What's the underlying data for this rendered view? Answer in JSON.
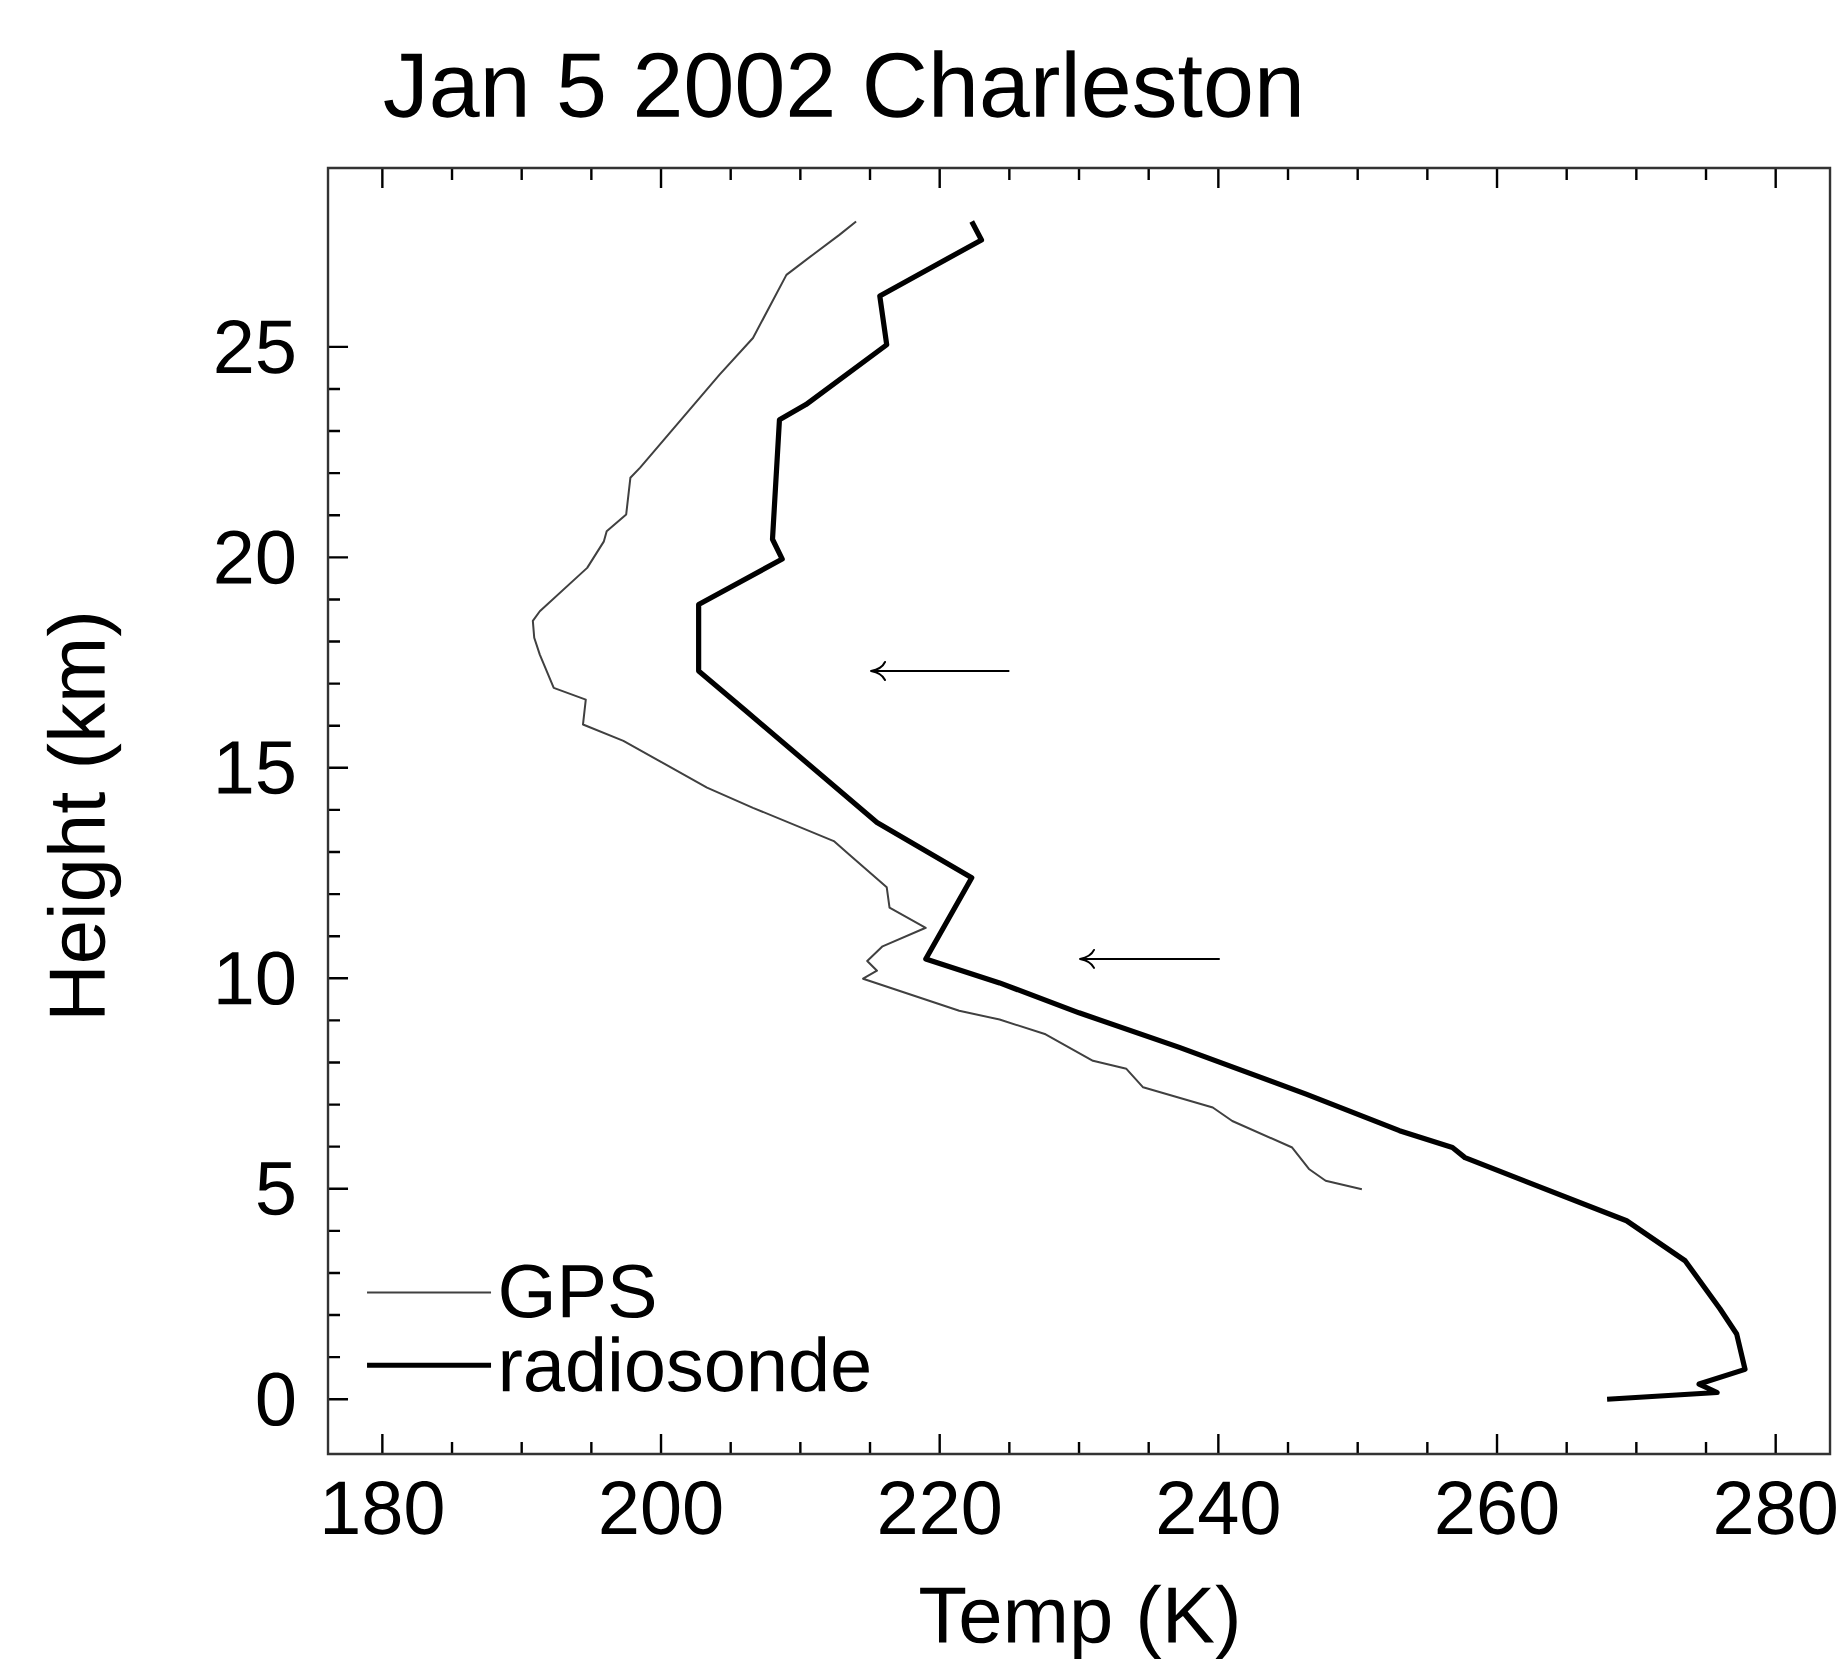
{
  "chart_data": {
    "type": "line",
    "title": "Jan 5 2002 Charleston",
    "xlabel": "Temp (K)",
    "ylabel": "Height (km)",
    "xlim": [
      176.1,
      283.9
    ],
    "ylim": [
      -1.3,
      29.25
    ],
    "xticks": [
      180,
      200,
      220,
      240,
      260,
      280
    ],
    "yticks": [
      0,
      5,
      10,
      15,
      20,
      25
    ],
    "legend": "bottom left",
    "series": [
      {
        "name": "GPS",
        "color": "#404040",
        "x": [
          250.3,
          247.7,
          246.5,
          245.3,
          241.0,
          239.6,
          234.6,
          233.4,
          231.0,
          227.6,
          224.3,
          221.4,
          214.5,
          215.5,
          214.8,
          215.9,
          219.0,
          216.4,
          216.2,
          213.5,
          212.4,
          206.6,
          203.3,
          199.9,
          197.3,
          194.4,
          194.6,
          192.3,
          191.3,
          190.9,
          190.8,
          191.3,
          194.7,
          195.9,
          196.1,
          197.5,
          197.8,
          198.5,
          204.2,
          206.6,
          209.0,
          210.9,
          212.8,
          214.0
        ],
        "values": [
          4.99,
          5.19,
          5.47,
          5.98,
          6.61,
          6.93,
          7.41,
          7.85,
          8.04,
          8.67,
          9.02,
          9.23,
          9.99,
          10.18,
          10.41,
          10.76,
          11.2,
          11.68,
          12.16,
          12.94,
          13.26,
          14.05,
          14.53,
          15.16,
          15.64,
          16.03,
          16.62,
          16.9,
          17.69,
          18.09,
          18.49,
          18.72,
          19.75,
          20.38,
          20.62,
          21.02,
          21.89,
          22.13,
          24.34,
          25.21,
          26.71,
          27.19,
          27.66,
          27.98
        ]
      },
      {
        "name": "radiosonde",
        "color": "#000000",
        "x": [
          267.9,
          275.8,
          274.5,
          277.8,
          277.2,
          276.0,
          273.5,
          269.3,
          257.7,
          256.8,
          253.0,
          246.3,
          237.2,
          230.0,
          224.3,
          219.0,
          222.3,
          215.5,
          206.1,
          202.7,
          202.7,
          208.7,
          208.0,
          208.5,
          210.4,
          216.2,
          215.7,
          223.0,
          222.3
        ],
        "values": [
          0,
          0.16,
          0.36,
          0.71,
          1.55,
          2.15,
          3.29,
          4.24,
          5.74,
          5.98,
          6.38,
          7.25,
          8.36,
          9.18,
          9.89,
          10.46,
          12.39,
          13.7,
          16.35,
          17.3,
          18.88,
          19.96,
          20.43,
          23.27,
          23.63,
          25.05,
          26.21,
          27.54,
          27.98
        ]
      }
    ]
  }
}
